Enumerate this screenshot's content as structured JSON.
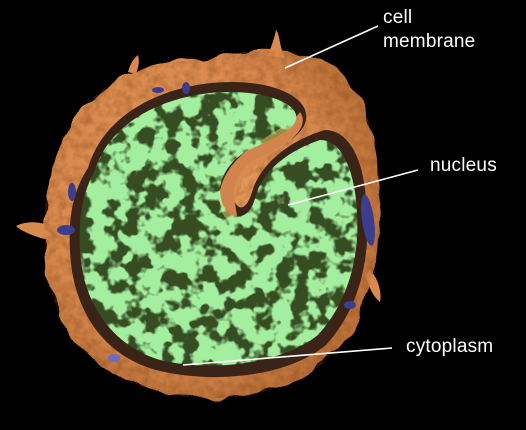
{
  "figure": {
    "subject": "cell-cross-section",
    "colors": {
      "background": "#000000",
      "membrane": "#d98a4e",
      "membrane_dark": "#a85f2c",
      "cytoplasm_dark": "#3a2418",
      "nucleus": "#5fdc5a",
      "nucleus_dark": "#2f9a33",
      "organelle": "#3b3d8f",
      "label_text": "#ffffff",
      "leader_line": "#ffffff"
    }
  },
  "labels": {
    "cell_membrane_line1": "cell",
    "cell_membrane_line2": "membrane",
    "nucleus": "nucleus",
    "cytoplasm": "cytoplasm"
  }
}
